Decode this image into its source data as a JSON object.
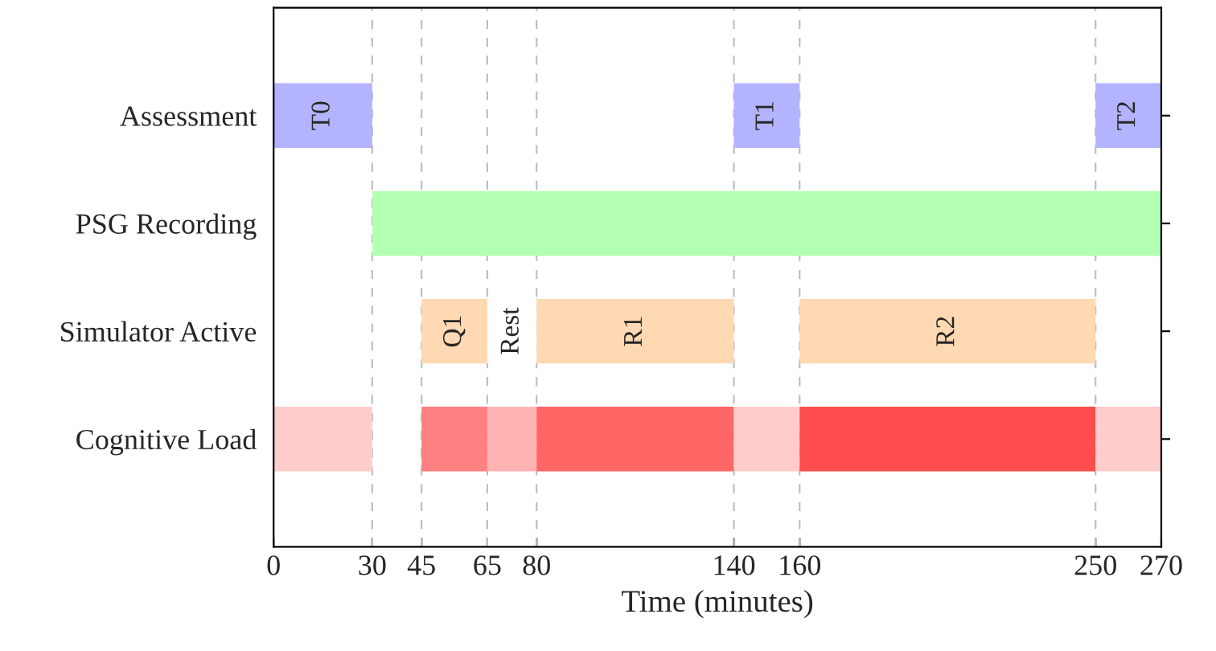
{
  "chart_data": {
    "type": "bar",
    "orientation": "horizontal",
    "xlabel": "Time (minutes)",
    "categories": [
      "Assessment",
      "PSG Recording",
      "Simulator Active",
      "Cognitive Load"
    ],
    "xlim": [
      0,
      270
    ],
    "xticks": [
      0,
      30,
      45,
      65,
      80,
      140,
      160,
      250,
      270
    ],
    "grid": false,
    "legend": false,
    "series": [
      {
        "values": [
          30,
          240,
          20,
          30
        ],
        "base": [
          0,
          30,
          45,
          0
        ],
        "colors": [
          "#b3b3ff",
          "#b3ffb3",
          "#ffd9b3",
          "#ffcccc"
        ],
        "value_labels": [
          "T0",
          null,
          "Q1",
          null
        ]
      },
      {
        "values": [
          20,
          null,
          15,
          20
        ],
        "base": [
          140,
          null,
          65,
          45
        ],
        "colors": [
          "#b3b3ff",
          null,
          "#ffffff",
          "#ff8080"
        ],
        "value_labels": [
          "T1",
          null,
          "Rest",
          null
        ]
      },
      {
        "values": [
          20,
          null,
          60,
          15
        ],
        "base": [
          250,
          null,
          80,
          65
        ],
        "colors": [
          "#b3b3ff",
          null,
          "#ffd9b3",
          "#ffb3b3"
        ],
        "value_labels": [
          "T2",
          null,
          "R1",
          null
        ]
      },
      {
        "values": [
          null,
          null,
          90,
          60
        ],
        "base": [
          null,
          null,
          160,
          80
        ],
        "colors": [
          null,
          null,
          "#ffd9b3",
          "#ff6666"
        ],
        "value_labels": [
          null,
          null,
          "R2",
          null
        ]
      },
      {
        "values": [
          null,
          null,
          null,
          20
        ],
        "base": [
          null,
          null,
          null,
          140
        ],
        "colors": [
          null,
          null,
          null,
          "#ffcccc"
        ]
      },
      {
        "values": [
          null,
          null,
          null,
          90
        ],
        "base": [
          null,
          null,
          null,
          160
        ],
        "colors": [
          null,
          null,
          null,
          "#ff4d4d"
        ]
      },
      {
        "values": [
          null,
          null,
          null,
          20
        ],
        "base": [
          null,
          null,
          null,
          250
        ],
        "colors": [
          null,
          null,
          null,
          "#ffcccc"
        ]
      }
    ],
    "ref_lines": [
      {
        "axis": "x",
        "value": 30,
        "color": "#bfbfbf",
        "line_style": "dashed"
      },
      {
        "axis": "x",
        "value": 45,
        "color": "#bfbfbf",
        "line_style": "dashed"
      },
      {
        "axis": "x",
        "value": 65,
        "color": "#bfbfbf",
        "line_style": "dashed"
      },
      {
        "axis": "x",
        "value": 80,
        "color": "#bfbfbf",
        "line_style": "dashed"
      },
      {
        "axis": "x",
        "value": 140,
        "color": "#bfbfbf",
        "line_style": "dashed"
      },
      {
        "axis": "x",
        "value": 160,
        "color": "#bfbfbf",
        "line_style": "dashed"
      },
      {
        "axis": "x",
        "value": 250,
        "color": "#bfbfbf",
        "line_style": "dashed"
      }
    ]
  }
}
